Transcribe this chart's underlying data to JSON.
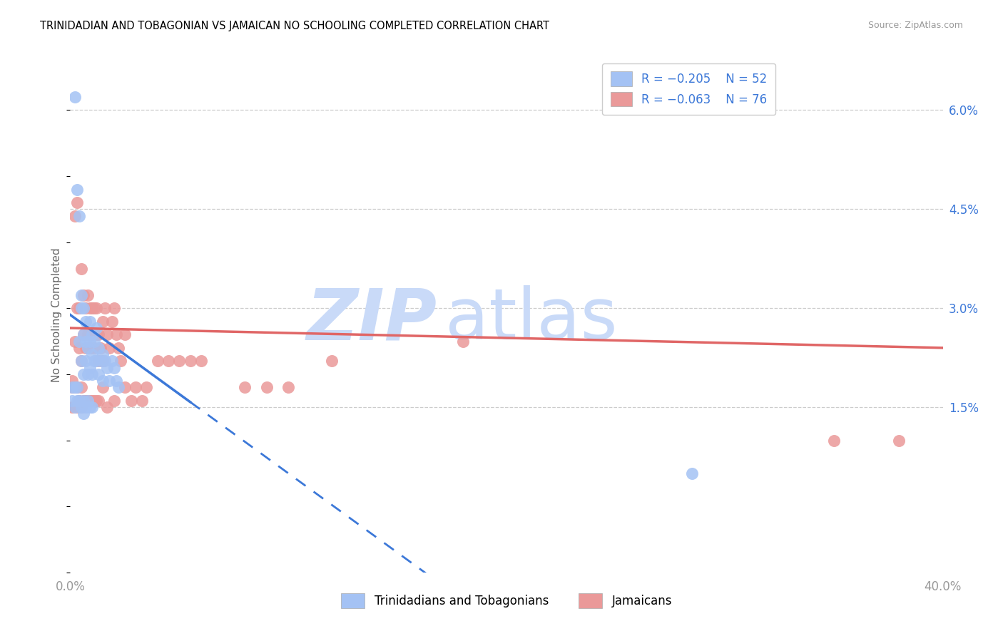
{
  "title": "TRINIDADIAN AND TOBAGONIAN VS JAMAICAN NO SCHOOLING COMPLETED CORRELATION CHART",
  "source": "Source: ZipAtlas.com",
  "ylabel": "No Schooling Completed",
  "ytick_vals": [
    0.015,
    0.03,
    0.045,
    0.06
  ],
  "ytick_labels": [
    "1.5%",
    "3.0%",
    "4.5%",
    "6.0%"
  ],
  "xmin": 0.0,
  "xmax": 0.4,
  "ymin": -0.01,
  "ymax": 0.068,
  "legend_label_blue": "Trinidadians and Tobagonians",
  "legend_label_pink": "Jamaicans",
  "blue_color": "#a4c2f4",
  "pink_color": "#ea9999",
  "line_blue": "#3c78d8",
  "line_pink": "#e06666",
  "watermark_zip_color": "#c9daf8",
  "watermark_atlas_color": "#c9daf8",
  "grid_color": "#cccccc",
  "tick_color": "#999999",
  "right_tick_color": "#3c78d8",
  "title_color": "#000000",
  "source_color": "#999999",
  "legend_text_color": "#3c78d8",
  "blue_x": [
    0.002,
    0.003,
    0.004,
    0.004,
    0.005,
    0.005,
    0.005,
    0.006,
    0.006,
    0.006,
    0.007,
    0.007,
    0.007,
    0.008,
    0.008,
    0.009,
    0.009,
    0.009,
    0.01,
    0.01,
    0.01,
    0.011,
    0.011,
    0.012,
    0.012,
    0.013,
    0.013,
    0.014,
    0.015,
    0.015,
    0.016,
    0.017,
    0.018,
    0.019,
    0.02,
    0.021,
    0.022,
    0.001,
    0.001,
    0.002,
    0.002,
    0.003,
    0.003,
    0.004,
    0.005,
    0.006,
    0.006,
    0.007,
    0.008,
    0.009,
    0.01,
    0.285
  ],
  "blue_y": [
    0.062,
    0.048,
    0.044,
    0.025,
    0.032,
    0.03,
    0.022,
    0.03,
    0.026,
    0.02,
    0.028,
    0.025,
    0.022,
    0.024,
    0.02,
    0.028,
    0.025,
    0.021,
    0.026,
    0.023,
    0.02,
    0.025,
    0.022,
    0.027,
    0.022,
    0.024,
    0.02,
    0.022,
    0.023,
    0.019,
    0.022,
    0.021,
    0.019,
    0.022,
    0.021,
    0.019,
    0.018,
    0.018,
    0.016,
    0.018,
    0.015,
    0.018,
    0.016,
    0.016,
    0.015,
    0.016,
    0.014,
    0.015,
    0.016,
    0.015,
    0.015,
    0.005
  ],
  "pink_x": [
    0.001,
    0.002,
    0.002,
    0.003,
    0.003,
    0.004,
    0.004,
    0.005,
    0.005,
    0.006,
    0.006,
    0.007,
    0.007,
    0.008,
    0.008,
    0.009,
    0.009,
    0.01,
    0.01,
    0.011,
    0.011,
    0.012,
    0.012,
    0.013,
    0.013,
    0.014,
    0.015,
    0.015,
    0.016,
    0.017,
    0.018,
    0.019,
    0.02,
    0.021,
    0.022,
    0.023,
    0.025,
    0.001,
    0.001,
    0.002,
    0.002,
    0.003,
    0.003,
    0.004,
    0.005,
    0.005,
    0.006,
    0.007,
    0.008,
    0.009,
    0.01,
    0.011,
    0.012,
    0.013,
    0.015,
    0.017,
    0.02,
    0.025,
    0.028,
    0.03,
    0.033,
    0.035,
    0.04,
    0.045,
    0.05,
    0.055,
    0.06,
    0.08,
    0.09,
    0.1,
    0.12,
    0.18,
    0.35,
    0.38
  ],
  "pink_y": [
    0.019,
    0.044,
    0.025,
    0.046,
    0.03,
    0.03,
    0.024,
    0.036,
    0.022,
    0.032,
    0.026,
    0.03,
    0.024,
    0.032,
    0.026,
    0.03,
    0.024,
    0.03,
    0.026,
    0.03,
    0.024,
    0.03,
    0.026,
    0.026,
    0.022,
    0.024,
    0.028,
    0.022,
    0.03,
    0.026,
    0.024,
    0.028,
    0.03,
    0.026,
    0.024,
    0.022,
    0.026,
    0.018,
    0.015,
    0.018,
    0.015,
    0.018,
    0.015,
    0.016,
    0.018,
    0.015,
    0.016,
    0.016,
    0.016,
    0.016,
    0.016,
    0.016,
    0.016,
    0.016,
    0.018,
    0.015,
    0.016,
    0.018,
    0.016,
    0.018,
    0.016,
    0.018,
    0.022,
    0.022,
    0.022,
    0.022,
    0.022,
    0.018,
    0.018,
    0.018,
    0.022,
    0.025,
    0.01,
    0.01
  ]
}
